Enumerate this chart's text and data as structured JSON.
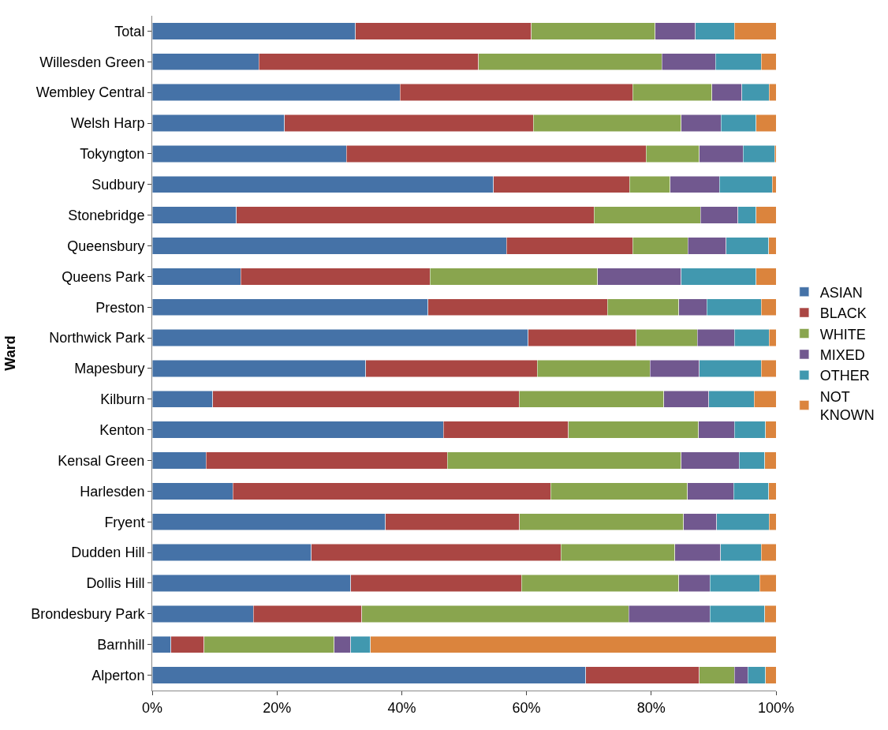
{
  "chart_data": {
    "type": "bar",
    "orientation": "horizontal",
    "stacked": true,
    "ylabel": "Ward",
    "categories": [
      "Total",
      "Willesden Green",
      "Wembley Central",
      "Welsh Harp",
      "Tokyngton",
      "Sudbury",
      "Stonebridge",
      "Queensbury",
      "Queens Park",
      "Preston",
      "Northwick Park",
      "Mapesbury",
      "Kilburn",
      "Kenton",
      "Kensal Green",
      "Harlesden",
      "Fryent",
      "Dudden Hill",
      "Dollis Hill",
      "Brondesbury Park",
      "Barnhill",
      "Alperton"
    ],
    "series": [
      {
        "name": "ASIAN",
        "color": "#4572a7",
        "values": [
          32.6,
          17.1,
          39.7,
          21.2,
          31.1,
          54.7,
          13.5,
          56.8,
          14.2,
          44.2,
          60.3,
          34.2,
          9.7,
          46.7,
          8.6,
          12.9,
          37.4,
          25.5,
          31.8,
          16.2,
          3.0,
          69.5
        ]
      },
      {
        "name": "BLACK",
        "color": "#aa4643",
        "values": [
          28.2,
          35.2,
          37.3,
          39.9,
          48.1,
          21.8,
          57.3,
          20.2,
          30.3,
          28.8,
          17.3,
          27.5,
          49.1,
          20.0,
          38.7,
          51.0,
          21.5,
          40.0,
          27.4,
          17.4,
          5.3,
          18.2
        ]
      },
      {
        "name": "WHITE",
        "color": "#89a54e",
        "values": [
          19.8,
          29.4,
          12.7,
          23.7,
          8.5,
          6.5,
          17.1,
          8.9,
          26.9,
          11.4,
          9.8,
          18.1,
          23.2,
          20.9,
          37.5,
          21.9,
          26.3,
          18.3,
          25.2,
          42.8,
          20.9,
          5.6
        ]
      },
      {
        "name": "MIXED",
        "color": "#71588f",
        "values": [
          6.5,
          8.6,
          4.8,
          6.4,
          7.0,
          7.9,
          6.0,
          6.1,
          13.4,
          4.5,
          5.9,
          7.9,
          7.2,
          5.7,
          9.3,
          7.4,
          5.3,
          7.3,
          5.0,
          13.0,
          2.6,
          2.2
        ]
      },
      {
        "name": "OTHER",
        "color": "#4198af",
        "values": [
          6.2,
          7.3,
          4.4,
          5.6,
          5.1,
          8.5,
          2.9,
          6.8,
          12.0,
          8.7,
          5.6,
          9.9,
          7.3,
          5.0,
          4.1,
          5.6,
          8.4,
          6.5,
          8.0,
          8.8,
          3.2,
          2.8
        ]
      },
      {
        "name": "NOT KNOWN",
        "color": "#db843d",
        "values": [
          6.7,
          2.4,
          1.1,
          3.2,
          0.2,
          0.6,
          3.2,
          1.2,
          3.2,
          2.4,
          1.1,
          2.4,
          3.5,
          1.7,
          1.8,
          1.2,
          1.1,
          2.4,
          2.6,
          1.8,
          65.0,
          1.7
        ]
      }
    ],
    "xlim": [
      0,
      100
    ],
    "xticks": [
      {
        "value": 0,
        "label": "0%"
      },
      {
        "value": 20,
        "label": "20%"
      },
      {
        "value": 40,
        "label": "40%"
      },
      {
        "value": 60,
        "label": "60%"
      },
      {
        "value": 80,
        "label": "80%"
      },
      {
        "value": 100,
        "label": "100%"
      }
    ],
    "legend": "right"
  }
}
